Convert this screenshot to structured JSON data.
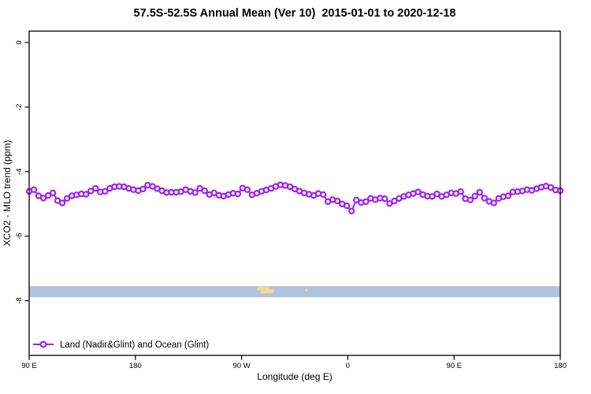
{
  "window": {
    "background": "#ffffff"
  },
  "chart_data": {
    "type": "line",
    "title": "57.5S-52.5S Annual Mean (Ver 10)  2015-01-01 to 2020-12-18",
    "xlabel": "Longitude (deg E)",
    "ylabel": "XCO2 - MLO trend (ppm)",
    "x_axis_note": "longitude axis wraps: plotted 90E eastward to 180 (450 degrees total)",
    "x_range_degE_plot": [
      90,
      540
    ],
    "ylim": [
      -9.7,
      0.35
    ],
    "grid": false,
    "x_tick_labels": [
      "90 E",
      "180",
      "90 W",
      "0",
      "90 E",
      "180"
    ],
    "x_tick_lons": [
      90,
      180,
      270,
      360,
      450,
      540
    ],
    "y_tick_labels": [
      "0",
      "-2",
      "-4",
      "-6",
      "-8"
    ],
    "y_tick_values": [
      0,
      -2,
      -4,
      -6,
      -8
    ],
    "legend": {
      "position": "bottom-left",
      "label": "Land (Nadir&Glint) and Ocean (Glint)"
    },
    "series": [
      {
        "name": "Land (Nadir&Glint) and Ocean (Glint)",
        "color": "#A020F0",
        "marker": "open-circle",
        "x_degE": [
          90.0,
          94.0,
          98.0,
          102.1,
          106.1,
          110.1,
          114.1,
          118.1,
          122.1,
          126.2,
          130.2,
          134.2,
          138.2,
          142.2,
          146.3,
          150.3,
          154.3,
          158.3,
          162.3,
          166.3,
          170.4,
          174.4,
          178.4,
          182.4,
          186.4,
          190.4,
          194.5,
          198.5,
          202.5,
          206.5,
          210.5,
          214.6,
          218.6,
          222.6,
          226.6,
          230.6,
          234.6,
          238.7,
          242.7,
          246.7,
          250.7,
          254.7,
          258.8,
          262.8,
          266.8,
          270.8,
          274.8,
          278.8,
          282.9,
          286.9,
          290.9,
          294.9,
          298.9,
          302.9,
          307.0,
          311.0,
          315.0,
          319.0,
          323.0,
          327.1,
          331.1,
          335.1,
          339.1,
          343.1,
          347.1,
          351.2,
          355.2,
          359.2,
          363.2,
          367.2,
          371.2,
          375.3,
          379.3,
          383.3,
          387.3,
          391.3,
          395.4,
          399.4,
          403.4,
          407.4,
          411.4,
          415.4,
          419.5,
          423.5,
          427.5,
          431.5,
          435.5,
          439.5,
          443.6,
          447.6,
          451.6,
          455.6,
          459.6,
          463.7,
          467.7,
          471.7,
          475.7,
          479.7,
          483.7,
          487.8,
          491.8,
          495.8,
          499.8,
          503.8,
          507.9,
          511.9,
          515.9,
          519.9,
          523.9,
          527.9,
          532.0,
          536.0,
          540.0
        ],
        "values": [
          -4.61,
          -4.56,
          -4.75,
          -4.82,
          -4.74,
          -4.66,
          -4.9,
          -4.97,
          -4.83,
          -4.75,
          -4.72,
          -4.69,
          -4.7,
          -4.6,
          -4.52,
          -4.63,
          -4.61,
          -4.52,
          -4.47,
          -4.46,
          -4.47,
          -4.52,
          -4.56,
          -4.59,
          -4.54,
          -4.42,
          -4.46,
          -4.53,
          -4.59,
          -4.65,
          -4.64,
          -4.64,
          -4.62,
          -4.56,
          -4.61,
          -4.65,
          -4.52,
          -4.59,
          -4.71,
          -4.66,
          -4.73,
          -4.76,
          -4.71,
          -4.67,
          -4.69,
          -4.51,
          -4.56,
          -4.72,
          -4.67,
          -4.61,
          -4.57,
          -4.52,
          -4.46,
          -4.41,
          -4.43,
          -4.47,
          -4.54,
          -4.6,
          -4.66,
          -4.7,
          -4.74,
          -4.68,
          -4.71,
          -4.93,
          -4.87,
          -4.91,
          -5.0,
          -5.06,
          -5.22,
          -4.88,
          -4.96,
          -4.93,
          -4.83,
          -4.87,
          -4.82,
          -4.84,
          -4.99,
          -4.91,
          -4.83,
          -4.77,
          -4.72,
          -4.68,
          -4.63,
          -4.71,
          -4.76,
          -4.77,
          -4.69,
          -4.77,
          -4.72,
          -4.66,
          -4.68,
          -4.62,
          -4.84,
          -4.88,
          -4.76,
          -4.64,
          -4.82,
          -4.92,
          -4.97,
          -4.83,
          -4.78,
          -4.75,
          -4.63,
          -4.62,
          -4.6,
          -4.56,
          -4.58,
          -4.53,
          -4.48,
          -4.45,
          -4.49,
          -4.57,
          -4.59
        ]
      }
    ],
    "map_strip": {
      "description": "latitude band strip: ocean in light blue, land in yellow",
      "ocean_color": "#AEC3DF",
      "land_color": "#F5D98C",
      "v_top": -7.55,
      "v_bottom": -7.89,
      "land_patches": [
        {
          "lon_from": 282.9,
          "lon_to": 293.0,
          "v_from": -7.57,
          "v_to": -7.68
        },
        {
          "lon_from": 286.0,
          "lon_to": 297.5,
          "v_from": -7.65,
          "v_to": -7.78
        },
        {
          "lon_from": 324.0,
          "lon_to": 326.0,
          "v_from": -7.63,
          "v_to": -7.71
        }
      ]
    }
  }
}
